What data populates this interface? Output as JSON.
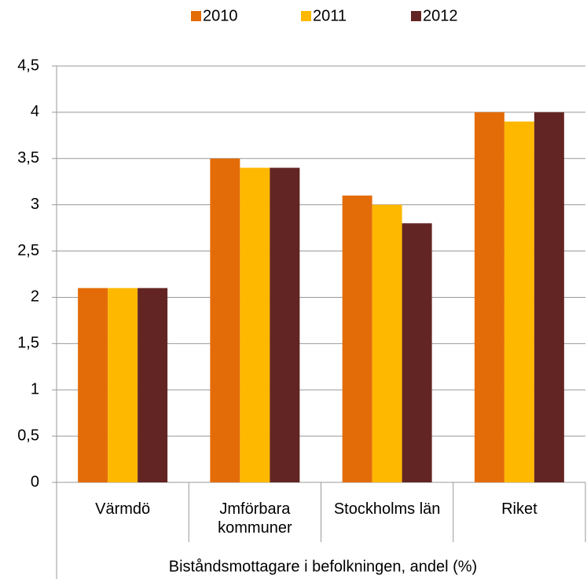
{
  "chart_data": {
    "type": "bar",
    "categories": [
      "Värmdö",
      "Jmförbara kommuner",
      "Stockholms län",
      "Riket"
    ],
    "x_label": "Biståndsmottagare i befolkningen, andel (%)",
    "series": [
      {
        "name": "2010",
        "color": "#e36c09",
        "values": [
          2.1,
          3.5,
          3.1,
          4.0
        ]
      },
      {
        "name": "2011",
        "color": "#ffb800",
        "values": [
          2.1,
          3.4,
          3.0,
          3.9
        ]
      },
      {
        "name": "2012",
        "color": "#632523",
        "values": [
          2.1,
          3.4,
          2.8,
          4.0
        ]
      }
    ],
    "ylim": [
      0,
      4.5
    ],
    "yticks": [
      0,
      {
        "value": 0.5,
        "label": "0,5"
      },
      1,
      {
        "value": 1.5,
        "label": "1,5"
      },
      2,
      {
        "value": 2.5,
        "label": "2,5"
      },
      3,
      {
        "value": 3.5,
        "label": "3,5"
      },
      4,
      {
        "value": 4.5,
        "label": "4,5"
      }
    ],
    "grid": true,
    "legend": "top"
  }
}
